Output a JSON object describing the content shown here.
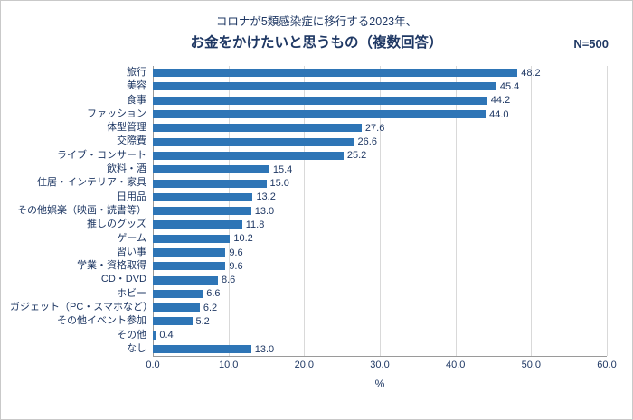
{
  "header": {
    "title_line1": "コロナが5類感染症に移行する2023年、",
    "title_line2": "お金をかけたいと思うもの（複数回答）",
    "sample_size": "N=500"
  },
  "chart_data": {
    "type": "bar",
    "orientation": "horizontal",
    "title": "お金をかけたいと思うもの（複数回答）",
    "categories": [
      "旅行",
      "美容",
      "食事",
      "ファッション",
      "体型管理",
      "交際費",
      "ライブ・コンサート",
      "飲料・酒",
      "住居・インテリア・家具",
      "日用品",
      "その他娯楽（映画・読書等）",
      "推しのグッズ",
      "ゲーム",
      "習い事",
      "学業・資格取得",
      "CD・DVD",
      "ホビー",
      "ガジェット（PC・スマホなど）",
      "その他イベント参加",
      "その他",
      "なし"
    ],
    "values": [
      48.2,
      45.4,
      44.2,
      44.0,
      27.6,
      26.6,
      25.2,
      15.4,
      15.0,
      13.2,
      13.0,
      11.8,
      10.2,
      9.6,
      9.6,
      8.6,
      6.6,
      6.2,
      5.2,
      0.4,
      13.0
    ],
    "xlabel": "%",
    "xlim": [
      0,
      60
    ],
    "xticks": [
      "0.0",
      "10.0",
      "20.0",
      "30.0",
      "40.0",
      "50.0",
      "60.0"
    ],
    "grid": "vertical",
    "legend": "none",
    "bar_color": "#2e75b6",
    "text_color": "#1f3864"
  }
}
